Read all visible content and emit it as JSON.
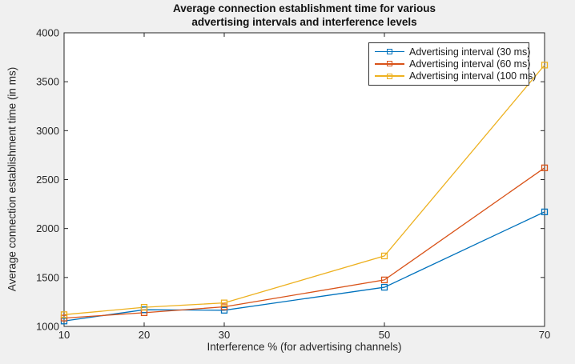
{
  "figure": {
    "title_line1": "Average connection establishment time for various",
    "title_line2": "advertising intervals and interference levels",
    "xlabel": "Interference % (for advertising channels)",
    "ylabel": "Average connection establishment time (in ms)"
  },
  "colors": {
    "figure_bg": "#F0F0F0",
    "axes_bg": "#FFFFFF",
    "axis": "#262626",
    "series_blue": "#0072BD",
    "series_orange": "#D95319",
    "series_yellow": "#EDB120"
  },
  "chart_data": {
    "type": "line",
    "title": "Average connection establishment time for various advertising intervals and interference levels",
    "xlabel": "Interference % (for advertising channels)",
    "ylabel": "Average connection establishment time (in ms)",
    "x": [
      10,
      20,
      30,
      50,
      70
    ],
    "series": [
      {
        "name": "Advertising interval (30 ms)",
        "color": "#0072BD",
        "marker": "square",
        "values": [
          1055,
          1170,
          1165,
          1400,
          2170
        ]
      },
      {
        "name": "Advertising interval (60 ms)",
        "color": "#D95319",
        "marker": "square",
        "values": [
          1085,
          1140,
          1200,
          1475,
          2620
        ]
      },
      {
        "name": "Advertising interval (100 ms)",
        "color": "#EDB120",
        "marker": "square",
        "values": [
          1120,
          1195,
          1240,
          1720,
          3670
        ]
      }
    ],
    "xlim": [
      10,
      70
    ],
    "ylim": [
      1000,
      4000
    ],
    "xticks": [
      10,
      20,
      30,
      50,
      70
    ],
    "yticks": [
      1000,
      1500,
      2000,
      2500,
      3000,
      3500,
      4000
    ],
    "grid": false,
    "box": true,
    "legend_position": "upper right"
  }
}
